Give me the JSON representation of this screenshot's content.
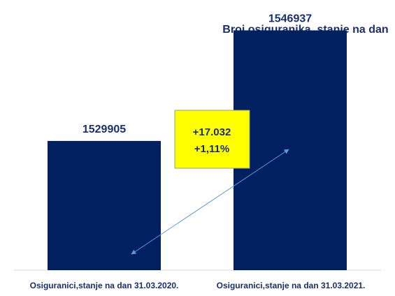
{
  "chart_data": {
    "type": "bar",
    "title": "Broj osiguranika, stanje na dan",
    "categories": [
      "Osiguranici,stanje na dan 31.03.2020.",
      "Osiguranici,stanje na dan 31.03.2021."
    ],
    "values": [
      1529905,
      1546937
    ],
    "value_labels": [
      "1529905",
      "1546937"
    ],
    "ylim": [
      1510000,
      1550000
    ],
    "grid": false,
    "legend": "none",
    "annotation": {
      "lines": [
        "+17.032",
        "+1,11%"
      ],
      "background": "#ffff00",
      "border": "#999999"
    },
    "colors": {
      "bar": "#002060",
      "text": "#1a2f6e",
      "arrow": "#5b9bd5"
    }
  }
}
